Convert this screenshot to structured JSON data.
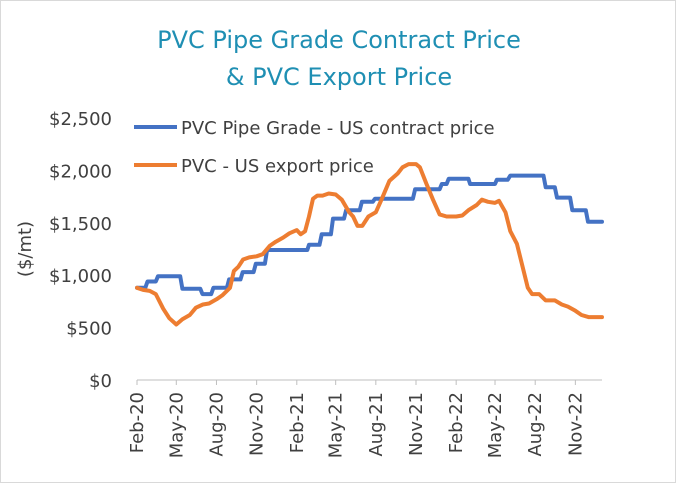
{
  "chart_data": {
    "type": "line",
    "title_lines": [
      "PVC Pipe Grade Contract Price",
      "& PVC Export Price"
    ],
    "ylabel": "($/mt)",
    "ylim": [
      0,
      2500
    ],
    "y_ticks": [
      0,
      500,
      1000,
      1500,
      2000,
      2500
    ],
    "y_tick_labels": [
      "$0",
      "$500",
      "$1,000",
      "$1,500",
      "$2,000",
      "$2,500"
    ],
    "x_range": [
      "2020-02-01",
      "2023-01-01"
    ],
    "x_tick_labels": [
      "Feb-20",
      "May-20",
      "Aug-20",
      "Nov-20",
      "Feb-21",
      "May-21",
      "Aug-21",
      "Nov-21",
      "Feb-22",
      "May-22",
      "Aug-22",
      "Nov-22"
    ],
    "x_tick_dates": [
      "2020-02-01",
      "2020-05-01",
      "2020-08-01",
      "2020-11-01",
      "2021-02-01",
      "2021-05-01",
      "2021-08-01",
      "2021-11-01",
      "2022-02-01",
      "2022-05-01",
      "2022-08-01",
      "2022-11-01"
    ],
    "grid": false,
    "legend_position": "top-left",
    "series": [
      {
        "name": "PVC Pipe Grade - US contract price",
        "color": "#4472c4",
        "points": [
          [
            "2020-02-01",
            880
          ],
          [
            "2020-02-20",
            880
          ],
          [
            "2020-02-25",
            940
          ],
          [
            "2020-03-15",
            940
          ],
          [
            "2020-03-20",
            990
          ],
          [
            "2020-05-10",
            990
          ],
          [
            "2020-05-15",
            870
          ],
          [
            "2020-06-25",
            870
          ],
          [
            "2020-06-30",
            820
          ],
          [
            "2020-07-20",
            820
          ],
          [
            "2020-07-25",
            880
          ],
          [
            "2020-08-25",
            880
          ],
          [
            "2020-08-30",
            960
          ],
          [
            "2020-09-25",
            960
          ],
          [
            "2020-09-30",
            1030
          ],
          [
            "2020-10-25",
            1030
          ],
          [
            "2020-10-30",
            1110
          ],
          [
            "2020-11-20",
            1110
          ],
          [
            "2020-11-25",
            1240
          ],
          [
            "2021-02-25",
            1240
          ],
          [
            "2021-03-01",
            1290
          ],
          [
            "2021-03-25",
            1290
          ],
          [
            "2021-03-30",
            1390
          ],
          [
            "2021-04-20",
            1390
          ],
          [
            "2021-04-25",
            1540
          ],
          [
            "2021-05-20",
            1540
          ],
          [
            "2021-05-25",
            1620
          ],
          [
            "2021-06-25",
            1620
          ],
          [
            "2021-06-30",
            1700
          ],
          [
            "2021-07-25",
            1700
          ],
          [
            "2021-07-30",
            1730
          ],
          [
            "2021-10-25",
            1730
          ],
          [
            "2021-10-30",
            1820
          ],
          [
            "2021-12-25",
            1820
          ],
          [
            "2021-12-30",
            1870
          ],
          [
            "2022-01-10",
            1870
          ],
          [
            "2022-01-15",
            1920
          ],
          [
            "2022-03-01",
            1920
          ],
          [
            "2022-03-05",
            1870
          ],
          [
            "2022-05-01",
            1870
          ],
          [
            "2022-05-05",
            1910
          ],
          [
            "2022-05-30",
            1910
          ],
          [
            "2022-06-05",
            1950
          ],
          [
            "2022-08-20",
            1950
          ],
          [
            "2022-08-25",
            1840
          ],
          [
            "2022-09-15",
            1840
          ],
          [
            "2022-09-20",
            1740
          ],
          [
            "2022-10-20",
            1740
          ],
          [
            "2022-10-25",
            1620
          ],
          [
            "2022-11-25",
            1620
          ],
          [
            "2022-11-30",
            1510
          ],
          [
            "2023-01-01",
            1510
          ]
        ]
      },
      {
        "name": "PVC - US export price",
        "color": "#ed7d31",
        "points": [
          [
            "2020-02-01",
            880
          ],
          [
            "2020-02-15",
            860
          ],
          [
            "2020-03-01",
            850
          ],
          [
            "2020-03-15",
            820
          ],
          [
            "2020-04-01",
            680
          ],
          [
            "2020-04-15",
            590
          ],
          [
            "2020-05-01",
            530
          ],
          [
            "2020-05-15",
            580
          ],
          [
            "2020-06-01",
            620
          ],
          [
            "2020-06-15",
            690
          ],
          [
            "2020-07-01",
            720
          ],
          [
            "2020-07-15",
            730
          ],
          [
            "2020-08-01",
            770
          ],
          [
            "2020-08-15",
            810
          ],
          [
            "2020-09-01",
            880
          ],
          [
            "2020-09-10",
            1040
          ],
          [
            "2020-09-20",
            1080
          ],
          [
            "2020-10-01",
            1150
          ],
          [
            "2020-10-15",
            1170
          ],
          [
            "2020-11-01",
            1180
          ],
          [
            "2020-11-15",
            1200
          ],
          [
            "2020-12-01",
            1280
          ],
          [
            "2020-12-15",
            1320
          ],
          [
            "2021-01-01",
            1360
          ],
          [
            "2021-01-15",
            1400
          ],
          [
            "2021-02-01",
            1430
          ],
          [
            "2021-02-10",
            1390
          ],
          [
            "2021-02-20",
            1420
          ],
          [
            "2021-03-01",
            1560
          ],
          [
            "2021-03-10",
            1730
          ],
          [
            "2021-03-20",
            1760
          ],
          [
            "2021-04-01",
            1760
          ],
          [
            "2021-04-15",
            1780
          ],
          [
            "2021-05-01",
            1770
          ],
          [
            "2021-05-15",
            1720
          ],
          [
            "2021-06-01",
            1600
          ],
          [
            "2021-06-10",
            1560
          ],
          [
            "2021-06-20",
            1470
          ],
          [
            "2021-07-01",
            1470
          ],
          [
            "2021-07-15",
            1560
          ],
          [
            "2021-08-01",
            1600
          ],
          [
            "2021-08-15",
            1730
          ],
          [
            "2021-09-01",
            1900
          ],
          [
            "2021-09-20",
            1970
          ],
          [
            "2021-10-01",
            2030
          ],
          [
            "2021-10-15",
            2060
          ],
          [
            "2021-11-01",
            2060
          ],
          [
            "2021-11-10",
            2030
          ],
          [
            "2021-11-25",
            1870
          ],
          [
            "2021-12-10",
            1720
          ],
          [
            "2021-12-25",
            1580
          ],
          [
            "2022-01-10",
            1560
          ],
          [
            "2022-02-01",
            1560
          ],
          [
            "2022-02-15",
            1570
          ],
          [
            "2022-03-01",
            1620
          ],
          [
            "2022-03-20",
            1670
          ],
          [
            "2022-04-01",
            1720
          ],
          [
            "2022-04-15",
            1700
          ],
          [
            "2022-05-01",
            1690
          ],
          [
            "2022-05-10",
            1710
          ],
          [
            "2022-05-25",
            1600
          ],
          [
            "2022-06-05",
            1420
          ],
          [
            "2022-06-20",
            1300
          ],
          [
            "2022-07-05",
            1050
          ],
          [
            "2022-07-15",
            880
          ],
          [
            "2022-07-25",
            820
          ],
          [
            "2022-08-10",
            820
          ],
          [
            "2022-08-25",
            760
          ],
          [
            "2022-09-15",
            760
          ],
          [
            "2022-10-01",
            720
          ],
          [
            "2022-10-15",
            700
          ],
          [
            "2022-11-01",
            660
          ],
          [
            "2022-11-15",
            620
          ],
          [
            "2022-12-01",
            600
          ],
          [
            "2023-01-01",
            600
          ]
        ]
      }
    ]
  }
}
